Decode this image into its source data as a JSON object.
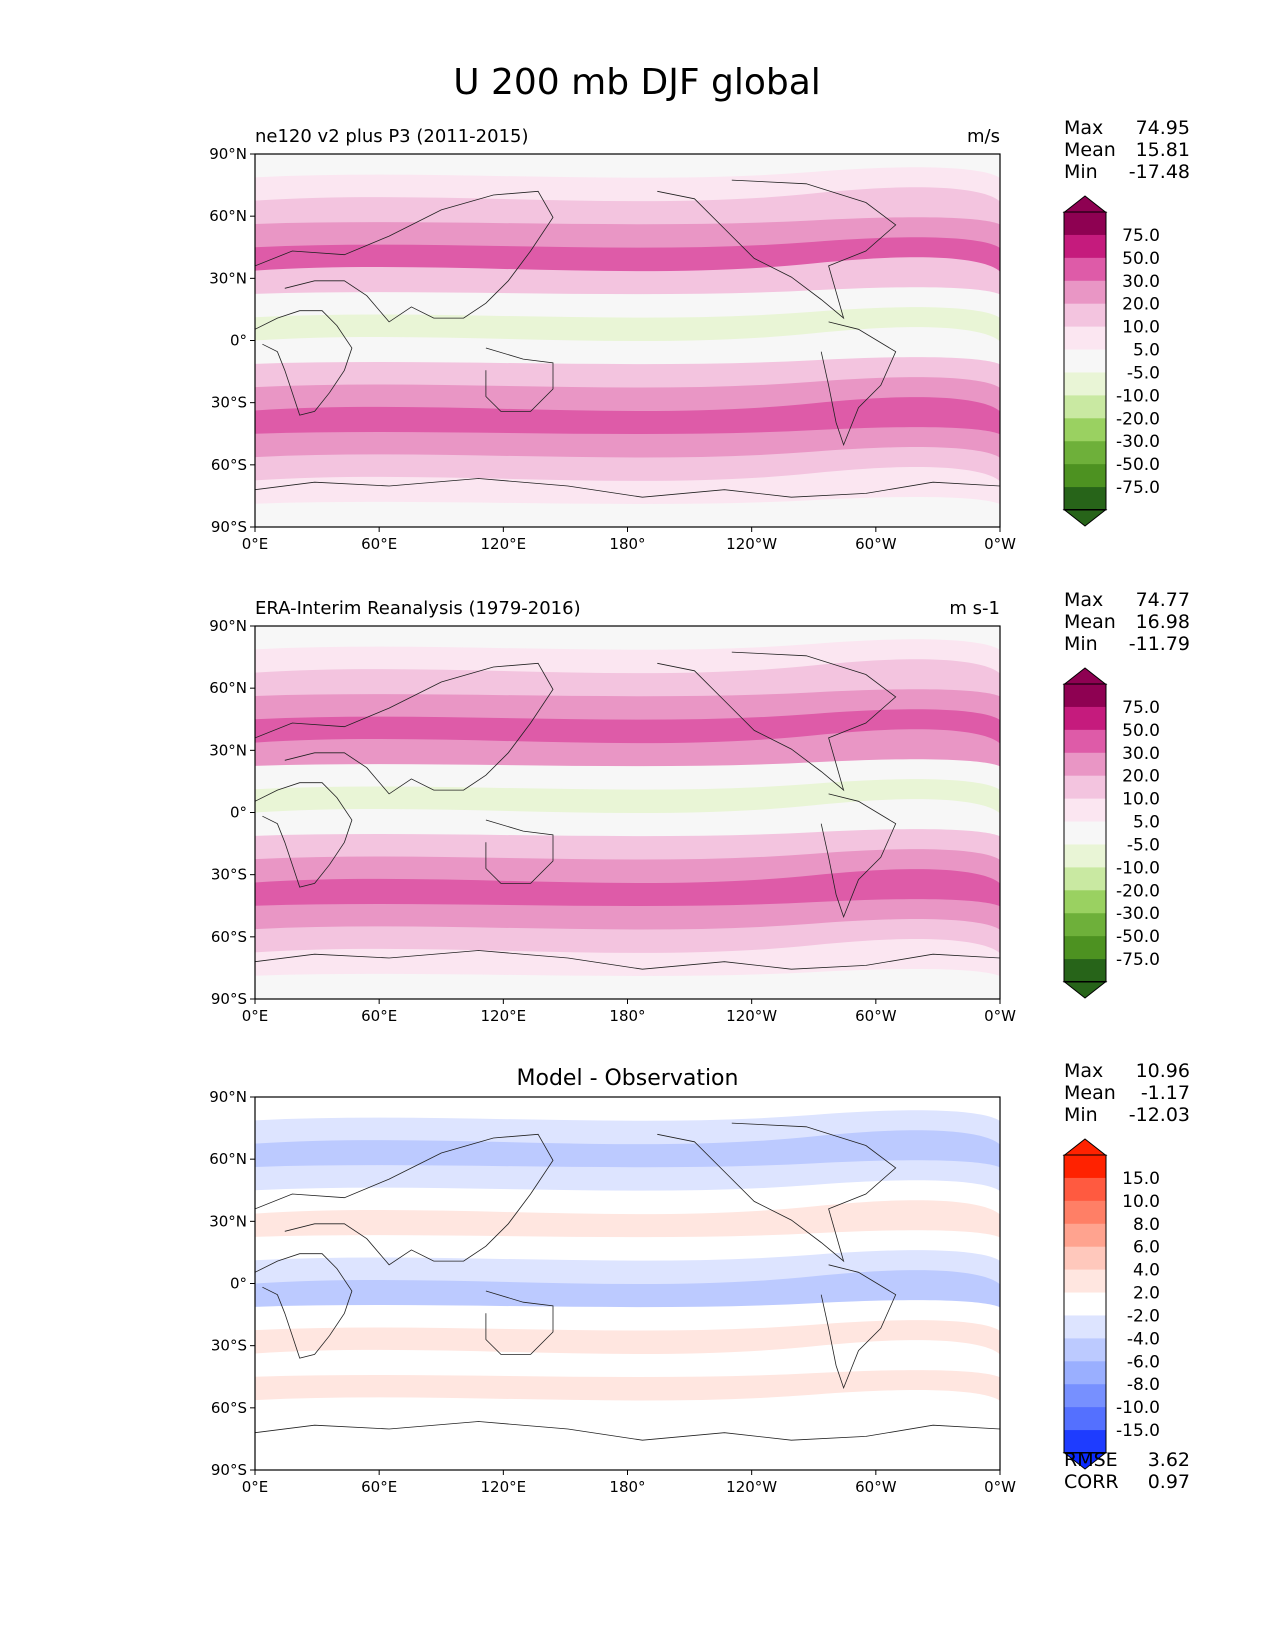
{
  "figure": {
    "title": "U 200 mb DJF global"
  },
  "chart_data": [
    {
      "type": "heatmap",
      "title": "ne120 v2 plus P3 (2011-2015)",
      "units": "m/s",
      "stats": [
        {
          "label": "Max",
          "value": "74.95"
        },
        {
          "label": "Mean",
          "value": "15.81"
        },
        {
          "label": "Min",
          "value": "-17.48"
        }
      ],
      "colorbar": {
        "labels": [
          "75.0",
          "50.0",
          "30.0",
          "20.0",
          "10.0",
          "5.0",
          "-5.0",
          "-10.0",
          "-20.0",
          "-30.0",
          "-50.0",
          "-75.0"
        ],
        "colors": [
          "#8e0152",
          "#c51b7d",
          "#de5ba8",
          "#e996c5",
          "#f3c4df",
          "#fbe6f1",
          "#f7f7f7",
          "#e9f5d6",
          "#c9e9a2",
          "#9ad161",
          "#6eb03a",
          "#4d9221",
          "#276419"
        ],
        "top_color": "#8e0152",
        "bottom_color": "#276419"
      },
      "x_ticks": [
        "0°E",
        "60°E",
        "120°E",
        "180°",
        "120°W",
        "60°W",
        "0°W"
      ],
      "y_ticks": [
        "90°N",
        "60°N",
        "30°N",
        "0°",
        "30°S",
        "60°S",
        "90°S"
      ],
      "band_colors": [
        "#f7f7f7",
        "#fbe6f1",
        "#f3c4df",
        "#e996c5",
        "#de5ba8",
        "#f3c4df",
        "#f7f7f7",
        "#e9f5d6",
        "#f7f7f7",
        "#f3c4df",
        "#e996c5",
        "#de5ba8",
        "#e996c5",
        "#f3c4df",
        "#fbe6f1",
        "#f7f7f7"
      ]
    },
    {
      "type": "heatmap",
      "title": "ERA-Interim Reanalysis (1979-2016)",
      "units": "m s-1",
      "stats": [
        {
          "label": "Max",
          "value": "74.77"
        },
        {
          "label": "Mean",
          "value": "16.98"
        },
        {
          "label": "Min",
          "value": "-11.79"
        }
      ],
      "colorbar": {
        "labels": [
          "75.0",
          "50.0",
          "30.0",
          "20.0",
          "10.0",
          "5.0",
          "-5.0",
          "-10.0",
          "-20.0",
          "-30.0",
          "-50.0",
          "-75.0"
        ],
        "colors": [
          "#8e0152",
          "#c51b7d",
          "#de5ba8",
          "#e996c5",
          "#f3c4df",
          "#fbe6f1",
          "#f7f7f7",
          "#e9f5d6",
          "#c9e9a2",
          "#9ad161",
          "#6eb03a",
          "#4d9221",
          "#276419"
        ],
        "top_color": "#8e0152",
        "bottom_color": "#276419"
      },
      "x_ticks": [
        "0°E",
        "60°E",
        "120°E",
        "180°",
        "120°W",
        "60°W",
        "0°W"
      ],
      "y_ticks": [
        "90°N",
        "60°N",
        "30°N",
        "0°",
        "30°S",
        "60°S",
        "90°S"
      ],
      "band_colors": [
        "#f7f7f7",
        "#fbe6f1",
        "#f3c4df",
        "#e996c5",
        "#de5ba8",
        "#e996c5",
        "#f7f7f7",
        "#e9f5d6",
        "#f7f7f7",
        "#f3c4df",
        "#e996c5",
        "#de5ba8",
        "#e996c5",
        "#f3c4df",
        "#fbe6f1",
        "#f7f7f7"
      ]
    },
    {
      "type": "heatmap",
      "title": "Model - Observation",
      "units": "",
      "stats": [
        {
          "label": "Max",
          "value": "10.96"
        },
        {
          "label": "Mean",
          "value": "-1.17"
        },
        {
          "label": "Min",
          "value": "-12.03"
        }
      ],
      "colorbar": {
        "labels": [
          "15.0",
          "10.0",
          "8.0",
          "6.0",
          "4.0",
          "2.0",
          "-2.0",
          "-4.0",
          "-6.0",
          "-8.0",
          "-10.0",
          "-15.0"
        ],
        "colors": [
          "#ff2200",
          "#ff5a40",
          "#ff7f66",
          "#ffa38f",
          "#ffc8bc",
          "#ffe6e0",
          "#ffffff",
          "#dde4ff",
          "#bccaff",
          "#9aafff",
          "#7790ff",
          "#5470ff",
          "#1e3cff"
        ],
        "top_color": "#ff2200",
        "bottom_color": "#0a2aff"
      },
      "x_ticks": [
        "0°E",
        "60°E",
        "120°E",
        "180°",
        "120°W",
        "60°W",
        "0°W"
      ],
      "y_ticks": [
        "90°N",
        "60°N",
        "30°N",
        "0°",
        "30°S",
        "60°S",
        "90°S"
      ],
      "band_colors": [
        "#ffffff",
        "#dde4ff",
        "#bccaff",
        "#dde4ff",
        "#ffffff",
        "#ffe6e0",
        "#ffffff",
        "#dde4ff",
        "#bccaff",
        "#ffffff",
        "#ffe6e0",
        "#ffffff",
        "#ffe6e0",
        "#ffffff",
        "#ffffff",
        "#ffffff"
      ],
      "extra_stats": [
        {
          "label": "RMSE",
          "value": "3.62"
        },
        {
          "label": "CORR",
          "value": "0.97"
        }
      ]
    }
  ]
}
